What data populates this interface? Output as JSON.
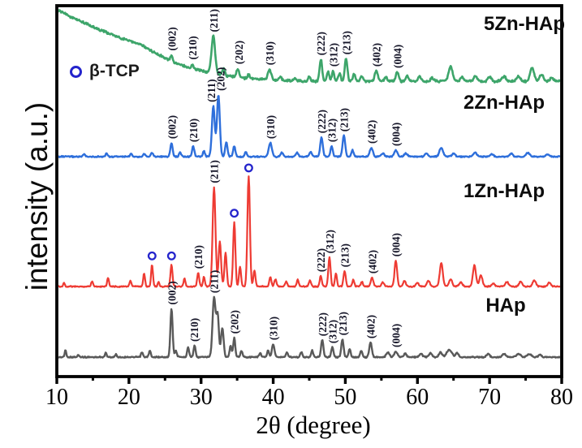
{
  "chart_data": {
    "type": "line",
    "title": "",
    "xlabel": "2θ (degree)",
    "ylabel": "intensity (a.u.)",
    "xlim": [
      10,
      80
    ],
    "x_major_ticks": [
      10,
      20,
      30,
      40,
      50,
      60,
      70,
      80
    ],
    "x_minor_ticks": [
      15,
      25,
      35,
      45,
      55,
      65,
      75
    ],
    "grid": false,
    "y_units": "arbitrary (stacked offsets, pixel scale)",
    "legend": {
      "label": "β-TCP",
      "marker": "open-circle",
      "marker_color": "#2424cc"
    },
    "peak_label_color": "#151528",
    "series": [
      {
        "name": "5Zn-HAp",
        "label": "5Zn-HAp",
        "color": "#3da56a",
        "seed": 4,
        "noise": 2.3,
        "stroke": 2.6,
        "background": [
          [
            10,
            12
          ],
          [
            12,
            21
          ],
          [
            14,
            29
          ],
          [
            16,
            37
          ],
          [
            18,
            44
          ],
          [
            20,
            50
          ],
          [
            21.7,
            55
          ],
          [
            23,
            62
          ],
          [
            24.5,
            69
          ],
          [
            26,
            76
          ],
          [
            27.5,
            81
          ],
          [
            29,
            85
          ],
          [
            30.5,
            88
          ],
          [
            32,
            91
          ],
          [
            33.5,
            93
          ],
          [
            35,
            95
          ],
          [
            37,
            97
          ],
          [
            39,
            98
          ],
          [
            41,
            99
          ],
          [
            44,
            100
          ],
          [
            80,
            100
          ]
        ],
        "peaks": [
          [
            25.9,
            8,
            0.2
          ],
          [
            28.8,
            6,
            0.2
          ],
          [
            31.7,
            46,
            0.35
          ],
          [
            33.1,
            8,
            0.25
          ],
          [
            35.1,
            11,
            0.25
          ],
          [
            36.6,
            5,
            0.2
          ],
          [
            39.5,
            13,
            0.3
          ],
          [
            41,
            4,
            0.25
          ],
          [
            43,
            4,
            0.25
          ],
          [
            45,
            5,
            0.25
          ],
          [
            46.6,
            27,
            0.25
          ],
          [
            47.6,
            12,
            0.22
          ],
          [
            48.3,
            13,
            0.22
          ],
          [
            49.2,
            10,
            0.22
          ],
          [
            50.1,
            28,
            0.25
          ],
          [
            51.2,
            9,
            0.22
          ],
          [
            52.3,
            6,
            0.25
          ],
          [
            54.3,
            13,
            0.3
          ],
          [
            55.6,
            5,
            0.25
          ],
          [
            57.2,
            11,
            0.3
          ],
          [
            58.6,
            6,
            0.3
          ],
          [
            60.3,
            5,
            0.3
          ],
          [
            62,
            4,
            0.3
          ],
          [
            64.6,
            18,
            0.4
          ],
          [
            66.2,
            5,
            0.3
          ],
          [
            68,
            6,
            0.35
          ],
          [
            70,
            5,
            0.3
          ],
          [
            72,
            6,
            0.35
          ],
          [
            74,
            6,
            0.35
          ],
          [
            75.9,
            16,
            0.4
          ],
          [
            77.2,
            8,
            0.35
          ],
          [
            78.6,
            5,
            0.3
          ]
        ],
        "peak_labels": [
          {
            "text": "(002)",
            "deg": 25.9
          },
          {
            "text": "(210)",
            "deg": 28.8
          },
          {
            "text": "(211)",
            "deg": 31.7
          },
          {
            "text": "(202)",
            "deg": 35.2
          },
          {
            "text": "(310)",
            "deg": 39.5
          },
          {
            "text": "(222)",
            "deg": 46.6
          },
          {
            "text": "(312)",
            "deg": 48.3
          },
          {
            "text": "(213)",
            "deg": 50.1
          },
          {
            "text": "(402)",
            "deg": 54.3
          },
          {
            "text": "(004)",
            "deg": 57.2
          }
        ],
        "markers": []
      },
      {
        "name": "2Zn-HAp",
        "label": "2Zn-HAp",
        "color": "#2e6fdb",
        "seed": 3,
        "noise": 1.2,
        "stroke": 2.4,
        "baseline": 193,
        "peaks": [
          [
            13.8,
            3,
            0.2
          ],
          [
            16.9,
            4,
            0.2
          ],
          [
            20.3,
            4,
            0.2
          ],
          [
            22.1,
            4,
            0.2
          ],
          [
            23.2,
            5,
            0.2
          ],
          [
            25.9,
            17,
            0.22
          ],
          [
            27.1,
            5,
            0.2
          ],
          [
            28.9,
            13,
            0.22
          ],
          [
            30.4,
            7,
            0.2
          ],
          [
            31.7,
            62,
            0.28
          ],
          [
            32.4,
            76,
            0.28
          ],
          [
            33.5,
            18,
            0.22
          ],
          [
            34.6,
            13,
            0.22
          ],
          [
            36.2,
            6,
            0.2
          ],
          [
            39.6,
            17,
            0.3
          ],
          [
            41.2,
            5,
            0.25
          ],
          [
            43.3,
            5,
            0.25
          ],
          [
            45.2,
            6,
            0.25
          ],
          [
            46.7,
            24,
            0.25
          ],
          [
            48.1,
            13,
            0.22
          ],
          [
            49.8,
            26,
            0.25
          ],
          [
            51,
            8,
            0.22
          ],
          [
            53.6,
            11,
            0.3
          ],
          [
            55.2,
            4,
            0.3
          ],
          [
            57,
            8,
            0.3
          ],
          [
            58.4,
            4,
            0.3
          ],
          [
            61.2,
            4,
            0.3
          ],
          [
            63.3,
            11,
            0.35
          ],
          [
            65,
            4,
            0.3
          ],
          [
            68,
            5,
            0.35
          ],
          [
            70.3,
            3,
            0.3
          ],
          [
            73,
            4,
            0.3
          ],
          [
            75.3,
            5,
            0.35
          ],
          [
            78,
            3,
            0.3
          ]
        ],
        "peak_labels": [
          {
            "text": "(002)",
            "deg": 25.9
          },
          {
            "text": "(210)",
            "deg": 28.9
          },
          {
            "text": "(211)",
            "deg": 31.4
          },
          {
            "text": "(202)",
            "deg": 32.7
          },
          {
            "text": "(310)",
            "deg": 39.6
          },
          {
            "text": "(222)",
            "deg": 46.7
          },
          {
            "text": "(312)",
            "deg": 48.1
          },
          {
            "text": "(213)",
            "deg": 49.8
          },
          {
            "text": "(402)",
            "deg": 53.6
          },
          {
            "text": "(004)",
            "deg": 57.0
          }
        ],
        "markers": []
      },
      {
        "name": "1Zn-HAp",
        "label": "1Zn-HAp",
        "color": "#ee3b33",
        "seed": 2,
        "noise": 1.1,
        "stroke": 2.2,
        "baseline": 353,
        "peaks": [
          [
            11,
            5,
            0.15
          ],
          [
            14.9,
            7,
            0.18
          ],
          [
            17.1,
            11,
            0.18
          ],
          [
            20.2,
            7,
            0.18
          ],
          [
            22.1,
            16,
            0.18
          ],
          [
            23.2,
            27,
            0.18
          ],
          [
            24.1,
            6,
            0.15
          ],
          [
            25.9,
            27,
            0.2
          ],
          [
            27.7,
            10,
            0.18
          ],
          [
            29.6,
            17,
            0.2
          ],
          [
            30.4,
            12,
            0.18
          ],
          [
            31.8,
            123,
            0.28
          ],
          [
            32.6,
            55,
            0.25
          ],
          [
            33.4,
            42,
            0.22
          ],
          [
            34.6,
            80,
            0.22
          ],
          [
            35.4,
            25,
            0.2
          ],
          [
            36.6,
            136,
            0.24
          ],
          [
            37.4,
            20,
            0.2
          ],
          [
            39.6,
            12,
            0.2
          ],
          [
            40.3,
            9,
            0.2
          ],
          [
            41.8,
            6,
            0.2
          ],
          [
            43.4,
            8,
            0.2
          ],
          [
            45.1,
            8,
            0.2
          ],
          [
            46.6,
            13,
            0.2
          ],
          [
            47.8,
            36,
            0.22
          ],
          [
            48.7,
            16,
            0.2
          ],
          [
            49.9,
            19,
            0.22
          ],
          [
            51.1,
            8,
            0.2
          ],
          [
            52.3,
            6,
            0.2
          ],
          [
            53.7,
            11,
            0.25
          ],
          [
            55.2,
            5,
            0.25
          ],
          [
            57,
            32,
            0.25
          ],
          [
            58.2,
            7,
            0.25
          ],
          [
            60,
            5,
            0.25
          ],
          [
            61.5,
            7,
            0.3
          ],
          [
            63.3,
            29,
            0.3
          ],
          [
            64.6,
            9,
            0.3
          ],
          [
            66,
            5,
            0.3
          ],
          [
            67.9,
            26,
            0.3
          ],
          [
            68.8,
            14,
            0.3
          ],
          [
            70.5,
            4,
            0.3
          ],
          [
            72.4,
            6,
            0.3
          ],
          [
            74.3,
            6,
            0.3
          ],
          [
            76.2,
            8,
            0.3
          ],
          [
            78.3,
            5,
            0.3
          ]
        ],
        "peak_labels": [
          {
            "text": "(210)",
            "deg": 29.6
          },
          {
            "text": "(211)",
            "deg": 31.8
          },
          {
            "text": "(222)",
            "deg": 46.6
          },
          {
            "text": "(312)",
            "deg": 47.8
          },
          {
            "text": "(213)",
            "deg": 49.9
          },
          {
            "text": "(402)",
            "deg": 53.7
          },
          {
            "text": "(004)",
            "deg": 57.0
          }
        ],
        "markers": [
          23.2,
          25.9,
          34.6,
          36.6
        ]
      },
      {
        "name": "HAp",
        "label": "HAp",
        "color": "#595959",
        "seed": 1,
        "noise": 1.2,
        "stroke": 2.4,
        "baseline": 440,
        "peaks": [
          [
            11.2,
            9,
            0.15
          ],
          [
            13,
            3,
            0.15
          ],
          [
            16.8,
            6,
            0.15
          ],
          [
            18.2,
            3,
            0.15
          ],
          [
            21.8,
            6,
            0.18
          ],
          [
            22.9,
            8,
            0.18
          ],
          [
            25.9,
            60,
            0.22
          ],
          [
            26.5,
            8,
            0.2
          ],
          [
            28.2,
            12,
            0.2
          ],
          [
            29.1,
            14,
            0.2
          ],
          [
            31.8,
            73,
            0.3
          ],
          [
            32.3,
            50,
            0.25
          ],
          [
            32.95,
            36,
            0.25
          ],
          [
            34.1,
            14,
            0.2
          ],
          [
            34.6,
            24,
            0.2
          ],
          [
            35.6,
            8,
            0.2
          ],
          [
            38.2,
            5,
            0.2
          ],
          [
            39.3,
            8,
            0.2
          ],
          [
            40,
            16,
            0.25
          ],
          [
            41.9,
            6,
            0.2
          ],
          [
            43.9,
            6,
            0.2
          ],
          [
            45.4,
            8,
            0.2
          ],
          [
            46.8,
            21,
            0.22
          ],
          [
            48.2,
            12,
            0.22
          ],
          [
            49.6,
            22,
            0.22
          ],
          [
            50.6,
            10,
            0.2
          ],
          [
            52.2,
            8,
            0.2
          ],
          [
            53.5,
            18,
            0.25
          ],
          [
            55.9,
            6,
            0.3
          ],
          [
            57,
            7,
            0.3
          ],
          [
            58.3,
            5,
            0.25
          ],
          [
            60.5,
            4,
            0.3
          ],
          [
            61.8,
            5,
            0.3
          ],
          [
            63.2,
            6,
            0.3
          ],
          [
            64.4,
            9,
            0.5
          ],
          [
            65.5,
            5,
            0.3
          ],
          [
            69.8,
            4,
            0.3
          ],
          [
            72,
            4,
            0.3
          ],
          [
            74,
            4,
            0.4
          ],
          [
            75.5,
            4,
            0.4
          ],
          [
            77,
            3,
            0.3
          ]
        ],
        "peak_labels": [
          {
            "text": "(002)",
            "deg": 25.9
          },
          {
            "text": "(210)",
            "deg": 29.0
          },
          {
            "text": "(211)",
            "deg": 31.8
          },
          {
            "text": "(202)",
            "deg": 34.6
          },
          {
            "text": "(310)",
            "deg": 40.0
          },
          {
            "text": "(222)",
            "deg": 46.8
          },
          {
            "text": "(312)",
            "deg": 48.2
          },
          {
            "text": "(213)",
            "deg": 49.6
          },
          {
            "text": "(402)",
            "deg": 53.5
          },
          {
            "text": "(004)",
            "deg": 57.0
          }
        ],
        "markers": []
      }
    ]
  }
}
